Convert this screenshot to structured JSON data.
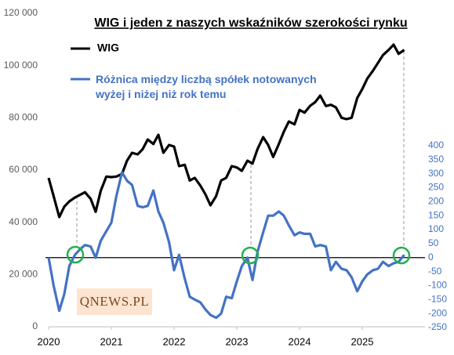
{
  "chart_data": {
    "type": "line",
    "title": "WIG i jeden z naszych wskaźników szerokości rynku",
    "logo": "QNEWS.PL",
    "x": [
      2020.0,
      2020.08,
      2020.17,
      2020.25,
      2020.33,
      2020.42,
      2020.5,
      2020.58,
      2020.67,
      2020.75,
      2020.83,
      2020.92,
      2021.0,
      2021.08,
      2021.17,
      2021.25,
      2021.33,
      2021.42,
      2021.5,
      2021.58,
      2021.67,
      2021.75,
      2021.83,
      2021.92,
      2022.0,
      2022.08,
      2022.17,
      2022.25,
      2022.33,
      2022.42,
      2022.5,
      2022.58,
      2022.67,
      2022.75,
      2022.83,
      2022.92,
      2023.0,
      2023.08,
      2023.17,
      2023.25,
      2023.33,
      2023.42,
      2023.5,
      2023.58,
      2023.67,
      2023.75,
      2023.83,
      2023.92,
      2024.0,
      2024.08,
      2024.17,
      2024.25,
      2024.33,
      2024.42,
      2024.5,
      2024.58,
      2024.67,
      2024.75,
      2024.83,
      2024.92,
      2025.0,
      2025.08,
      2025.17,
      2025.25,
      2025.33,
      2025.42,
      2025.5,
      2025.58,
      2025.67
    ],
    "series": [
      {
        "name": "WIG",
        "color": "#000000",
        "axis": "y",
        "values": [
          57000,
          50000,
          42000,
          46000,
          48000,
          49500,
          50500,
          51500,
          49000,
          44000,
          52000,
          57500,
          57300,
          57500,
          58500,
          63600,
          66600,
          66000,
          68000,
          71700,
          70000,
          73500,
          66600,
          69600,
          69000,
          61500,
          62000,
          56000,
          57000,
          54000,
          50700,
          46500,
          50000,
          56000,
          57000,
          61500,
          61000,
          59700,
          63600,
          62500,
          68000,
          72600,
          69600,
          65000,
          70000,
          74700,
          78600,
          77500,
          83000,
          82000,
          84600,
          86000,
          88500,
          84500,
          85000,
          84000,
          80000,
          79500,
          80000,
          87600,
          91000,
          95000,
          98000,
          101000,
          104000,
          106000,
          108000,
          104500,
          106000
        ]
      },
      {
        "name": "Różnica między liczbą spółek notowanych wyżej i niżej niż rok temu",
        "color": "#4472c4",
        "axis": "y2",
        "values": [
          0,
          -100,
          -190,
          -130,
          -30,
          10,
          30,
          45,
          40,
          0,
          60,
          95,
          125,
          220,
          305,
          275,
          260,
          185,
          180,
          185,
          240,
          165,
          125,
          55,
          -45,
          10,
          -75,
          -140,
          -150,
          -160,
          -185,
          -205,
          -215,
          -200,
          -140,
          -145,
          -85,
          -30,
          0,
          -80,
          20,
          90,
          150,
          150,
          165,
          150,
          115,
          80,
          90,
          85,
          85,
          40,
          45,
          40,
          -45,
          -15,
          -40,
          -45,
          -70,
          -120,
          -85,
          -60,
          -45,
          -40,
          -15,
          -30,
          -20,
          -15,
          10
        ]
      }
    ],
    "xlim": [
      2020,
      2026
    ],
    "xticks": [
      2020,
      2021,
      2022,
      2023,
      2024,
      2025
    ],
    "ylim": [
      0,
      120000
    ],
    "yticks": [
      0,
      {
        "value": 20000,
        "label": "20 000"
      },
      {
        "value": 40000,
        "label": "40 000"
      },
      {
        "value": 60000,
        "label": "60 000"
      },
      {
        "value": 80000,
        "label": "80 000"
      },
      {
        "value": 100000,
        "label": "100 000"
      },
      {
        "value": 120000,
        "label": "120 000"
      }
    ],
    "y2lim": [
      -250,
      400
    ],
    "y2ticks": [
      -250,
      -200,
      -150,
      -100,
      -50,
      0,
      50,
      100,
      150,
      200,
      250,
      300,
      350,
      400
    ],
    "grid": false
  }
}
